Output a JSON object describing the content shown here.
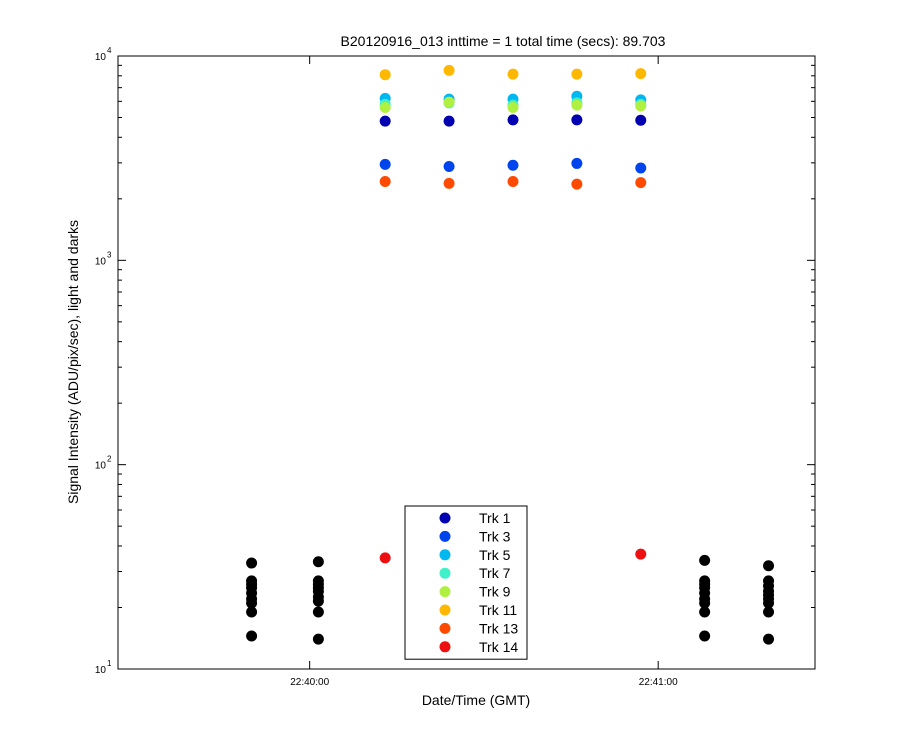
{
  "chart_data": {
    "type": "scatter",
    "title": "B20120916_013 inttime = 1 total time (secs): 89.703",
    "xlabel": "Date/Time (GMT)",
    "ylabel": "Signal Intensity (ADU/pix/sec), light and darks",
    "x_unit": "seconds after 22:40:00 GMT",
    "xlim": [
      -33,
      87
    ],
    "ylim": [
      10,
      10000
    ],
    "y_scale": "log",
    "x_ticks": [
      {
        "value": 0,
        "label": "22:40:00"
      },
      {
        "value": 60,
        "label": "22:41:00"
      }
    ],
    "y_ticks": [
      {
        "value": 10,
        "base": "10",
        "exp": "1"
      },
      {
        "value": 100,
        "base": "10",
        "exp": "2"
      },
      {
        "value": 1000,
        "base": "10",
        "exp": "3"
      },
      {
        "value": 10000,
        "base": "10",
        "exp": "4"
      }
    ],
    "grid": false,
    "legend_position": "bottom-center",
    "series": [
      {
        "name": "Trk 1",
        "color": "#0000B0",
        "x": [
          13,
          24,
          35,
          46,
          57
        ],
        "y": [
          4800,
          4800,
          4870,
          4870,
          4850
        ]
      },
      {
        "name": "Trk 3",
        "color": "#0044EE",
        "x": [
          13,
          24,
          35,
          46,
          57
        ],
        "y": [
          2950,
          2880,
          2920,
          2980,
          2830
        ]
      },
      {
        "name": "Trk 5",
        "color": "#00B8F0",
        "x": [
          13,
          24,
          35,
          46,
          57
        ],
        "y": [
          6200,
          6150,
          6150,
          6350,
          6100
        ]
      },
      {
        "name": "Trk 7",
        "color": "#40F0C8",
        "x": [
          13,
          24,
          35,
          46,
          57
        ],
        "y": [
          5800,
          5900,
          5750,
          5900,
          5800
        ]
      },
      {
        "name": "Trk 9",
        "color": "#B0F040",
        "x": [
          13,
          24,
          35,
          46,
          57
        ],
        "y": [
          5600,
          5950,
          5600,
          5750,
          5700
        ]
      },
      {
        "name": "Trk 11",
        "color": "#FFB800",
        "x": [
          13,
          24,
          35,
          46,
          57
        ],
        "y": [
          8100,
          8500,
          8150,
          8150,
          8200
        ]
      },
      {
        "name": "Trk 13",
        "color": "#FF4A00",
        "x": [
          13,
          24,
          35,
          46,
          57
        ],
        "y": [
          2430,
          2380,
          2430,
          2360,
          2400
        ]
      },
      {
        "name": "Trk 14",
        "color": "#EE1010",
        "x": [
          13,
          24,
          57
        ],
        "y": [
          35,
          35,
          36.5
        ]
      }
    ],
    "darks": {
      "color": "#000000",
      "x": [
        -10,
        -10,
        -10,
        -10,
        -10,
        -10,
        -10,
        -10,
        -10,
        1.5,
        1.5,
        1.5,
        1.5,
        1.5,
        1.5,
        1.5,
        1.5,
        1.5,
        68,
        68,
        68,
        68,
        68,
        68,
        68,
        68,
        68,
        79,
        79,
        79,
        79,
        79,
        79,
        79,
        79,
        79
      ],
      "y": [
        33,
        27,
        26,
        25,
        23.5,
        22,
        21,
        19,
        14.5,
        33.5,
        27,
        26,
        25,
        24,
        22.5,
        21.5,
        19,
        14,
        34,
        27,
        26,
        25,
        23.5,
        22,
        21,
        19,
        14.5,
        32,
        27,
        25.5,
        24,
        23,
        22,
        21,
        19,
        14
      ]
    }
  }
}
